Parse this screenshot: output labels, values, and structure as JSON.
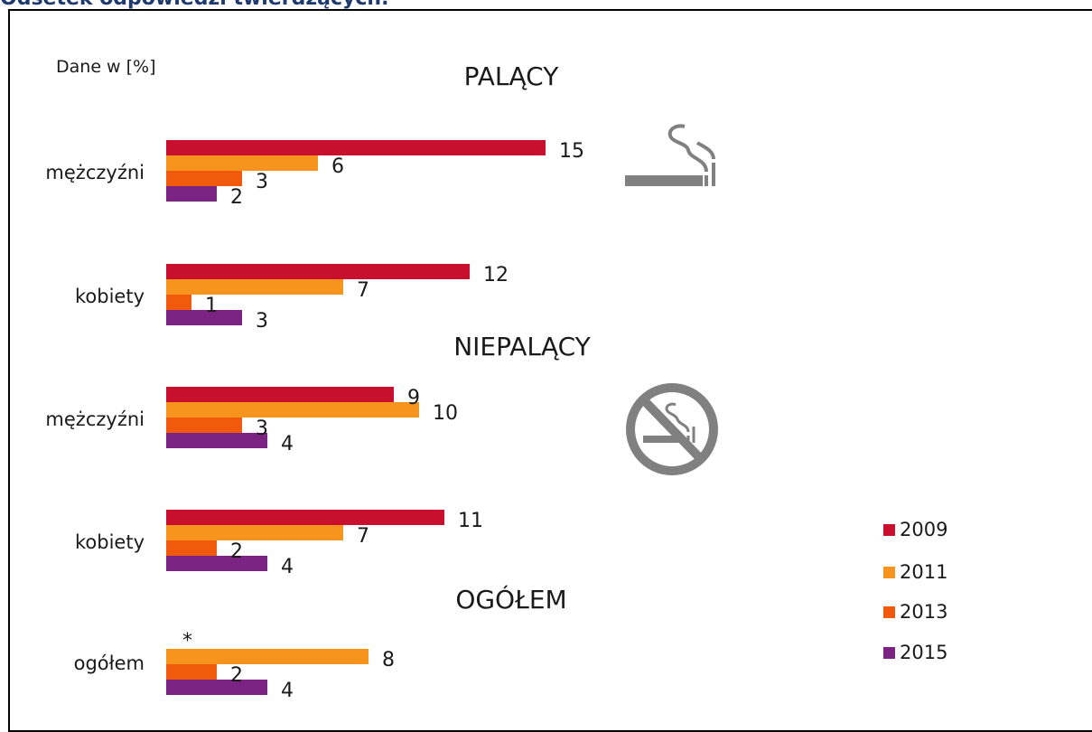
{
  "heading": "Odsetek odpowiedzi twierdzących.",
  "chart_data": {
    "type": "bar",
    "orientation": "horizontal",
    "unit_label": "Dane w [%]",
    "legend_position": "right",
    "colors": {
      "2009": "#c8102e",
      "2011": "#f7941d",
      "2013": "#f15a0a",
      "2015": "#7b2382"
    },
    "series_names": [
      "2009",
      "2011",
      "2013",
      "2015"
    ],
    "sections": [
      {
        "title": "PALĄCY",
        "icon": "cigarette-icon",
        "groups": [
          {
            "label": "mężczyźni",
            "values": [
              15,
              6,
              3,
              2
            ]
          },
          {
            "label": "kobiety",
            "values": [
              12,
              7,
              1,
              3
            ]
          }
        ]
      },
      {
        "title": "NIEPALĄCY",
        "icon": "no-smoking-icon",
        "groups": [
          {
            "label": "mężczyźni",
            "values": [
              9,
              10,
              3,
              4
            ]
          },
          {
            "label": "kobiety",
            "values": [
              11,
              7,
              2,
              4
            ]
          }
        ]
      },
      {
        "title": "OGÓŁEM",
        "groups": [
          {
            "label": "ogółem",
            "values": [
              null,
              8,
              2,
              4
            ],
            "missing_marker": "*"
          }
        ]
      }
    ]
  }
}
